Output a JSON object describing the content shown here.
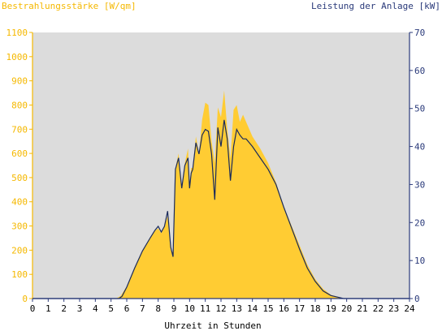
{
  "chart_data": {
    "type": "area",
    "title_left": "Bestrahlungsstärke [W/qm]",
    "title_right": "Leistung der Anlage [kW]",
    "xlabel": "Uhrzeit in Stunden",
    "xlim": [
      0,
      24
    ],
    "ylim_left": [
      0,
      1100
    ],
    "ylim_right": [
      0,
      70
    ],
    "x_ticks": [
      "0",
      "1",
      "2",
      "3",
      "4",
      "5",
      "6",
      "7",
      "8",
      "9",
      "10",
      "11",
      "12",
      "13",
      "14",
      "15",
      "16",
      "17",
      "18",
      "19",
      "20",
      "21",
      "22",
      "23",
      "24"
    ],
    "y_left_ticks": [
      "0",
      "100",
      "200",
      "300",
      "400",
      "500",
      "600",
      "700",
      "800",
      "900",
      "1000",
      "1100"
    ],
    "y_right_ticks": [
      "0",
      "10",
      "20",
      "30",
      "40",
      "50",
      "60",
      "70"
    ],
    "grid": false,
    "colors": {
      "plot_background": "#dcdcdc",
      "irradiance_fill": "#ffcc33",
      "power_line": "#1a2a5a",
      "left_axis": "#f5b800",
      "right_axis": "#2a3a7a"
    },
    "series": [
      {
        "name": "Bestrahlungsstärke [W/qm]",
        "axis": "left",
        "kind": "area",
        "x": [
          0,
          5.3,
          5.6,
          6.0,
          6.5,
          7.0,
          7.5,
          7.8,
          8.0,
          8.2,
          8.4,
          8.6,
          8.8,
          8.95,
          9.1,
          9.3,
          9.5,
          9.7,
          9.9,
          10.0,
          10.1,
          10.2,
          10.4,
          10.6,
          10.8,
          11.0,
          11.2,
          11.4,
          11.6,
          11.8,
          12.0,
          12.2,
          12.4,
          12.6,
          12.8,
          13.0,
          13.2,
          13.4,
          13.6,
          13.8,
          14.0,
          14.5,
          15.0,
          15.5,
          16.0,
          16.5,
          17.0,
          17.5,
          18.0,
          18.5,
          19.0,
          19.5,
          19.8,
          20,
          24
        ],
        "y": [
          0,
          0,
          10,
          50,
          130,
          200,
          250,
          280,
          290,
          270,
          300,
          340,
          200,
          190,
          540,
          600,
          450,
          560,
          620,
          470,
          540,
          540,
          670,
          600,
          740,
          810,
          800,
          650,
          560,
          790,
          750,
          860,
          700,
          580,
          780,
          800,
          730,
          760,
          730,
          700,
          670,
          620,
          560,
          480,
          380,
          300,
          220,
          140,
          80,
          40,
          15,
          5,
          0,
          0,
          0
        ]
      },
      {
        "name": "Leistung der Anlage [kW]",
        "axis": "right",
        "kind": "line",
        "x": [
          0,
          5.5,
          5.7,
          6.0,
          6.5,
          7.0,
          7.5,
          7.8,
          8.0,
          8.2,
          8.4,
          8.6,
          8.8,
          8.95,
          9.1,
          9.3,
          9.5,
          9.7,
          9.9,
          10.0,
          10.1,
          10.2,
          10.4,
          10.6,
          10.8,
          11.0,
          11.2,
          11.4,
          11.6,
          11.8,
          12.0,
          12.2,
          12.4,
          12.6,
          12.8,
          13.0,
          13.2,
          13.4,
          13.6,
          13.8,
          14.0,
          14.5,
          15.0,
          15.5,
          16.0,
          16.5,
          17.0,
          17.5,
          18.0,
          18.5,
          19.0,
          19.5,
          19.8,
          20,
          24
        ],
        "y": [
          0,
          0,
          0.6,
          3,
          8,
          12.5,
          16,
          18,
          19,
          17.5,
          19,
          23,
          13.5,
          11,
          34,
          37,
          29,
          35,
          37,
          29,
          33,
          34,
          41,
          38,
          43,
          44.5,
          44,
          38,
          26,
          45,
          40,
          47,
          42,
          31,
          40,
          44.5,
          43,
          42,
          42,
          41,
          40,
          37,
          34,
          30,
          24,
          18.5,
          13,
          8,
          4.5,
          2,
          0.8,
          0.3,
          0,
          0,
          0
        ]
      }
    ]
  }
}
